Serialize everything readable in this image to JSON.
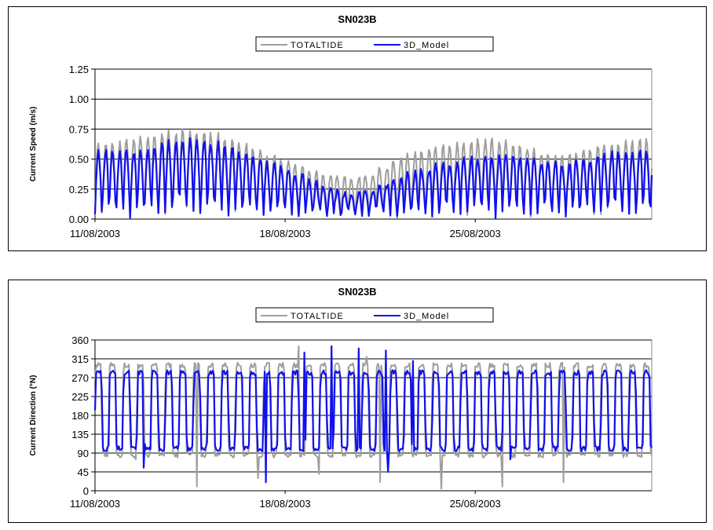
{
  "chart_data": [
    {
      "type": "line",
      "title": "SN023B",
      "xlabel": "",
      "ylabel": "Current Speed (m/s)",
      "ylim": [
        0,
        1.25
      ],
      "yticks": [
        "0.00",
        "0.25",
        "0.50",
        "0.75",
        "1.00",
        "1.25"
      ],
      "xticks": [
        "11/08/2003",
        "18/08/2003",
        "25/08/2003"
      ],
      "xlim_days": [
        0,
        20.5
      ],
      "legend": {
        "placement": "top-center",
        "entries": [
          "TOTALTIDE",
          "3D_Model"
        ]
      },
      "grid": "horizontal",
      "colors": {
        "TOTALTIDE": "#9e9e9e",
        "3D_Model": "#1010ee"
      },
      "series": [
        {
          "name": "TOTALTIDE",
          "tidal_period_hours": 12.42,
          "peaks": [
            0.72,
            0.72,
            0.76,
            0.78,
            0.8,
            0.82,
            0.84,
            0.82,
            0.8,
            0.77,
            0.72,
            0.66,
            0.6,
            0.55,
            0.5,
            0.45,
            0.42,
            0.4,
            0.38,
            0.42,
            0.48,
            0.55,
            0.6,
            0.64,
            0.68,
            0.7,
            0.72,
            0.74,
            0.76,
            0.74,
            0.7,
            0.66,
            0.62,
            0.6,
            0.62,
            0.66,
            0.7,
            0.72,
            0.74,
            0.76
          ],
          "min": 0.02
        },
        {
          "name": "3D_Model",
          "tidal_period_hours": 12.42,
          "peaks": [
            0.64,
            0.62,
            0.64,
            0.66,
            0.7,
            0.72,
            0.74,
            0.74,
            0.72,
            0.68,
            0.64,
            0.58,
            0.52,
            0.48,
            0.42,
            0.36,
            0.3,
            0.26,
            0.24,
            0.28,
            0.32,
            0.36,
            0.42,
            0.46,
            0.5,
            0.52,
            0.56,
            0.58,
            0.6,
            0.6,
            0.58,
            0.56,
            0.54,
            0.52,
            0.54,
            0.56,
            0.6,
            0.62,
            0.64,
            0.66
          ],
          "min": 0.02
        }
      ]
    },
    {
      "type": "line",
      "title": "SN023B",
      "xlabel": "",
      "ylabel": "Current Direction (°N)",
      "ylim": [
        0,
        360
      ],
      "yticks": [
        "0",
        "45",
        "90",
        "135",
        "180",
        "225",
        "270",
        "315",
        "360"
      ],
      "xticks": [
        "11/08/2003",
        "18/08/2003",
        "25/08/2003"
      ],
      "xlim_days": [
        0,
        20.5
      ],
      "legend": {
        "placement": "top-center",
        "entries": [
          "TOTALTIDE",
          "3D_Model"
        ]
      },
      "grid": "horizontal",
      "colors": {
        "TOTALTIDE": "#9e9e9e",
        "3D_Model": "#1010ee"
      },
      "series": [
        {
          "name": "TOTALTIDE",
          "tidal_period_hours": 12.42,
          "high_level": 300,
          "low_level": 85,
          "outlier_lows": [
            75,
            10,
            30,
            40,
            20,
            5,
            10,
            20
          ],
          "outlier_highs": [
            345,
            320
          ]
        },
        {
          "name": "3D_Model",
          "tidal_period_hours": 12.42,
          "high_level": 282,
          "low_level": 100,
          "outlier_lows": [
            55,
            20,
            45,
            75
          ],
          "outlier_highs": [
            330,
            345,
            340,
            335,
            310
          ]
        }
      ]
    }
  ]
}
